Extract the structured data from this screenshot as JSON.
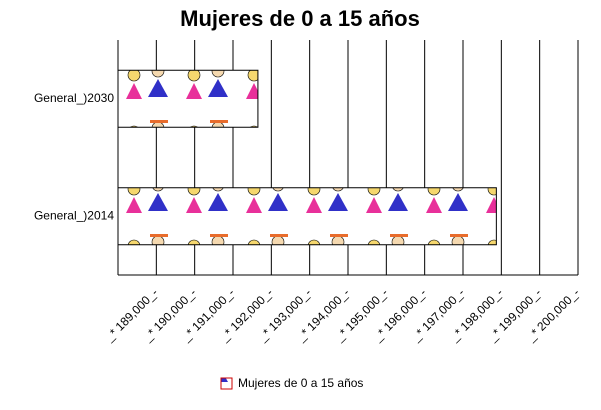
{
  "chart_data": {
    "type": "hbar",
    "title": "Mujeres de 0 a 15 años",
    "categories": [
      "General_)2030",
      "General_)2014"
    ],
    "series": [
      {
        "name": "Mujeres de 0 a 15 años",
        "values": [
          191650,
          197870
        ]
      }
    ],
    "xlim": [
      188000,
      200000
    ],
    "xticks": [
      {
        "value": 189000,
        "label": "_* 189,000_-"
      },
      {
        "value": 190000,
        "label": "_* 190,000_-"
      },
      {
        "value": 191000,
        "label": "_* 191,000_-"
      },
      {
        "value": 192000,
        "label": "_* 192,000_-"
      },
      {
        "value": 193000,
        "label": "_* 193,000_-"
      },
      {
        "value": 194000,
        "label": "_* 194,000_-"
      },
      {
        "value": 195000,
        "label": "_* 195,000_-"
      },
      {
        "value": 196000,
        "label": "_* 196,000_-"
      },
      {
        "value": 197000,
        "label": "_* 197,000_-"
      },
      {
        "value": 198000,
        "label": "_* 198,000_-"
      },
      {
        "value": 199000,
        "label": "_* 199,000_-"
      },
      {
        "value": 200000,
        "label": "_* 200,000_-"
      }
    ],
    "grid": true
  }
}
